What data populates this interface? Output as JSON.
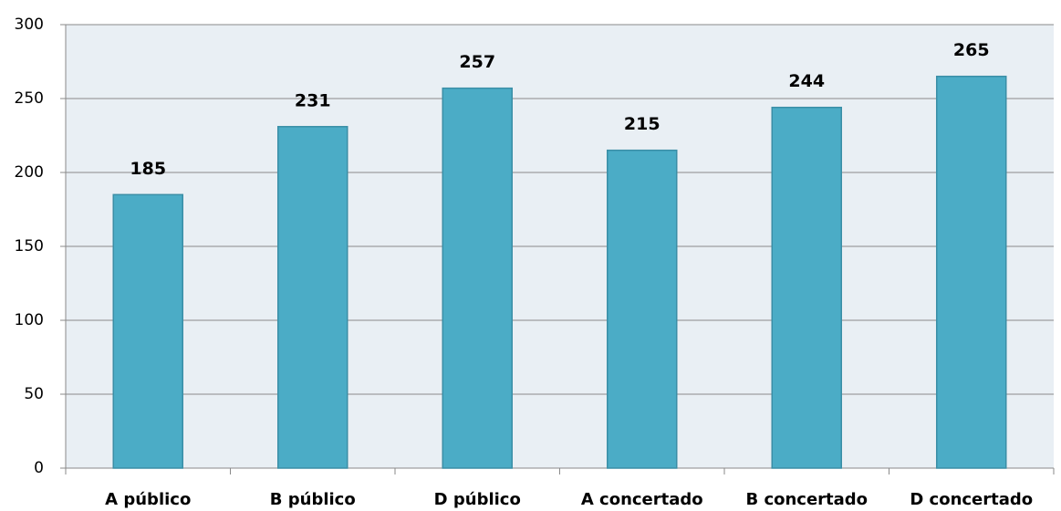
{
  "chart_data": {
    "type": "bar",
    "categories": [
      "A público",
      "B público",
      "D público",
      "A concertado",
      "B concertado",
      "D concertado"
    ],
    "values": [
      185,
      231,
      257,
      215,
      244,
      265
    ],
    "color": "#4bacc6",
    "ylim": [
      0,
      300
    ],
    "yticks": [
      0,
      50,
      100,
      150,
      200,
      250,
      300
    ],
    "grid": true
  }
}
